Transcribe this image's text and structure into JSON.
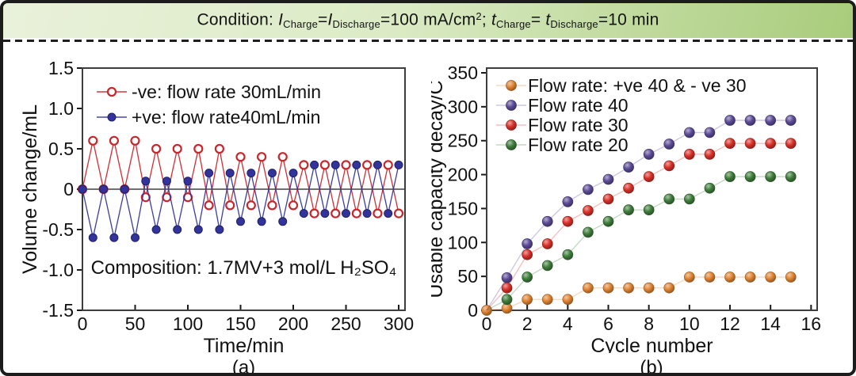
{
  "header": {
    "segments": [
      {
        "text": "Condition: ",
        "style": "normal"
      },
      {
        "text": "I",
        "style": "italic"
      },
      {
        "text": "Charge",
        "style": "sub"
      },
      {
        "text": "=",
        "style": "normal"
      },
      {
        "text": "I",
        "style": "italic"
      },
      {
        "text": "Discharge",
        "style": "sub"
      },
      {
        "text": "=100 mA/cm",
        "style": "normal"
      },
      {
        "text": "2",
        "style": "sup"
      },
      {
        "text": "; ",
        "style": "normal"
      },
      {
        "text": "t",
        "style": "italic"
      },
      {
        "text": "Charge",
        "style": "sub"
      },
      {
        "text": "= ",
        "style": "normal"
      },
      {
        "text": "t",
        "style": "italic"
      },
      {
        "text": "Discharge",
        "style": "sub"
      },
      {
        "text": "=10 min",
        "style": "normal"
      }
    ]
  },
  "style": {
    "banner_gradient_left": "#e9f1da",
    "banner_gradient_mid": "#dcebc6",
    "banner_gradient_right": "#a8cc7b",
    "border_color": "#1c1c1c",
    "axis_color": "#3d3d3d",
    "text_color": "#111111"
  },
  "chart_data": [
    {
      "id": "a",
      "type": "line",
      "caption": "(a)",
      "xlabel": "Time/min",
      "ylabel": "Volume change/mL",
      "xlim": [
        0,
        306
      ],
      "ylim": [
        -1.5,
        1.5
      ],
      "zero_line": true,
      "xticks": [
        {
          "v": 0,
          "label": "0"
        },
        {
          "v": 50,
          "label": "50"
        },
        {
          "v": 100,
          "label": "100"
        },
        {
          "v": 150,
          "label": "150"
        },
        {
          "v": 200,
          "label": "200"
        },
        {
          "v": 250,
          "label": "250"
        },
        {
          "v": 300,
          "label": "300"
        }
      ],
      "yticks": [
        {
          "v": 1.5,
          "label": "1.5"
        },
        {
          "v": 1.0,
          "label": "1.0"
        },
        {
          "v": 0.5,
          "label": "0.5"
        },
        {
          "v": 0,
          "label": "0"
        },
        {
          "v": -0.5,
          "label": "-0.5"
        },
        {
          "v": -1.0,
          "label": "-1.0"
        },
        {
          "v": -1.5,
          "label": "-1.5"
        }
      ],
      "x": [
        0,
        10,
        20,
        30,
        40,
        50,
        60,
        70,
        80,
        90,
        100,
        110,
        120,
        130,
        140,
        150,
        160,
        170,
        180,
        190,
        200,
        210,
        220,
        230,
        240,
        250,
        260,
        270,
        280,
        290,
        300
      ],
      "series": [
        {
          "name": "-ve: flow rate 30mL/min",
          "color": "#c9252b",
          "marker": "open",
          "values": [
            0,
            0.6,
            0,
            0.6,
            0,
            0.6,
            -0.1,
            0.5,
            -0.1,
            0.5,
            -0.1,
            0.5,
            -0.2,
            0.5,
            -0.2,
            0.4,
            -0.2,
            0.4,
            -0.2,
            0.4,
            -0.2,
            0.3,
            -0.3,
            0.3,
            -0.3,
            0.3,
            -0.3,
            0.3,
            -0.3,
            0.3,
            -0.3
          ]
        },
        {
          "name": "+ve: flow rate40mL/min",
          "color": "#32339b",
          "marker": "filled",
          "values": [
            0,
            -0.6,
            0,
            -0.6,
            0,
            -0.6,
            0.1,
            -0.5,
            0.1,
            -0.5,
            0.1,
            -0.5,
            0.2,
            -0.5,
            0.2,
            -0.4,
            0.2,
            -0.4,
            0.2,
            -0.4,
            0.2,
            -0.3,
            0.3,
            -0.3,
            0.3,
            -0.3,
            0.3,
            -0.3,
            0.3,
            -0.3,
            0.3
          ]
        }
      ],
      "annotation": "Composition: 1.7MV+3 mol/L H₂SO₄"
    },
    {
      "id": "b",
      "type": "scatter",
      "caption": "(b)",
      "xlabel": "Cycle number",
      "ylabel": "Usable capacity decay/C",
      "xlim": [
        0,
        16.3
      ],
      "ylim": [
        0,
        357
      ],
      "zero_line": false,
      "xticks": [
        {
          "v": 0,
          "label": "0"
        },
        {
          "v": 2,
          "label": "2"
        },
        {
          "v": 4,
          "label": "4"
        },
        {
          "v": 6,
          "label": "6"
        },
        {
          "v": 8,
          "label": "8"
        },
        {
          "v": 10,
          "label": "10"
        },
        {
          "v": 12,
          "label": "12"
        },
        {
          "v": 14,
          "label": "14"
        },
        {
          "v": 16,
          "label": "16"
        }
      ],
      "yticks": [
        {
          "v": 0,
          "label": "0"
        },
        {
          "v": 50,
          "label": "50"
        },
        {
          "v": 100,
          "label": "100"
        },
        {
          "v": 150,
          "label": "150"
        },
        {
          "v": 200,
          "label": "200"
        },
        {
          "v": 250,
          "label": "250"
        },
        {
          "v": 300,
          "label": "300"
        },
        {
          "v": 350,
          "label": "350"
        }
      ],
      "x": [
        1,
        2,
        3,
        4,
        5,
        6,
        7,
        8,
        9,
        10,
        11,
        12,
        13,
        14,
        15
      ],
      "series": [
        {
          "name": "Flow rate: +ve 40 & - ve 30",
          "color": "#e08433",
          "marker": "ball",
          "start_at_origin": true,
          "origin_point": true,
          "values": [
            3,
            16,
            16,
            16,
            33,
            33,
            33,
            33,
            33,
            49,
            49,
            49,
            49,
            49,
            49
          ]
        },
        {
          "name": "Flow rate 40",
          "color": "#5c4b97",
          "marker": "ball",
          "start_at_origin": true,
          "values": [
            48,
            98,
            131,
            160,
            178,
            193,
            211,
            230,
            245,
            262,
            262,
            280,
            280,
            280,
            280
          ]
        },
        {
          "name": "Flow rate 30",
          "color": "#d93129",
          "marker": "ball",
          "start_at_origin": true,
          "values": [
            33,
            82,
            98,
            131,
            147,
            164,
            180,
            197,
            213,
            230,
            230,
            246,
            246,
            246,
            246
          ]
        },
        {
          "name": "Flow rate 20",
          "color": "#3f7d3c",
          "marker": "ball",
          "start_at_origin": true,
          "values": [
            16,
            49,
            66,
            82,
            115,
            131,
            148,
            148,
            164,
            164,
            180,
            197,
            197,
            197,
            197
          ]
        }
      ]
    }
  ]
}
